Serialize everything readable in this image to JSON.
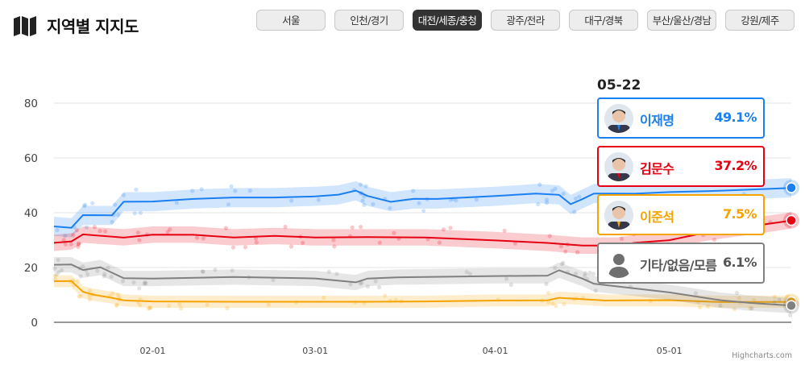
{
  "header": {
    "title": "지역별 지지도",
    "icon": "map-icon",
    "tabs": [
      {
        "label": "서울",
        "active": false
      },
      {
        "label": "인천/경기",
        "active": false
      },
      {
        "label": "대전/세종/충청",
        "active": true
      },
      {
        "label": "광주/전라",
        "active": false
      },
      {
        "label": "대구/경북",
        "active": false
      },
      {
        "label": "부산/울산/경남",
        "active": false
      },
      {
        "label": "강원/제주",
        "active": false
      }
    ]
  },
  "tooltip": {
    "date": "05-22",
    "entries": [
      {
        "name": "이재명",
        "value": "49.1%",
        "color": "#1a7ff0"
      },
      {
        "name": "김문수",
        "value": "37.2%",
        "color": "#e60012"
      },
      {
        "name": "이준석",
        "value": "7.5%",
        "color": "#f5a300"
      },
      {
        "name": "기타/없음/모름",
        "value": "6.1%",
        "color": "#808080"
      }
    ]
  },
  "credit": "Highcharts.com",
  "chart_data": {
    "type": "line",
    "x_unit": "date (2025)",
    "x_range": [
      "01-15",
      "05-22"
    ],
    "x_ticks": [
      "02-01",
      "03-01",
      "04-01",
      "05-01"
    ],
    "ylim": [
      0,
      80
    ],
    "y_ticks": [
      0,
      20,
      40,
      60,
      80
    ],
    "grid": true,
    "bands": true,
    "series": [
      {
        "name": "이재명",
        "color": "#1a7ff0",
        "x": [
          "01-15",
          "01-18",
          "01-20",
          "01-25",
          "01-27",
          "02-01",
          "02-08",
          "02-15",
          "02-22",
          "03-01",
          "03-05",
          "03-08",
          "03-10",
          "03-14",
          "03-18",
          "03-22",
          "04-01",
          "04-08",
          "04-12",
          "04-14",
          "04-16",
          "04-18",
          "04-25",
          "05-01",
          "05-08",
          "05-15",
          "05-22"
        ],
        "values": [
          35,
          34.5,
          39,
          39,
          44,
          44,
          45,
          45.5,
          45.5,
          46,
          46.5,
          48,
          46,
          44,
          45,
          45,
          46,
          47,
          46.5,
          43,
          45,
          47,
          47,
          47.5,
          48,
          48.5,
          49.1
        ]
      },
      {
        "name": "김문수",
        "color": "#e60012",
        "x": [
          "01-15",
          "01-18",
          "01-20",
          "01-27",
          "02-01",
          "02-08",
          "02-15",
          "02-22",
          "03-01",
          "03-10",
          "03-20",
          "04-01",
          "04-10",
          "04-16",
          "04-22",
          "04-25",
          "05-01",
          "05-08",
          "05-15",
          "05-22"
        ],
        "values": [
          29,
          29.5,
          32,
          31,
          32,
          32,
          31,
          31.5,
          31,
          31,
          31,
          30,
          29,
          28,
          28,
          29,
          30,
          33,
          35,
          37.2
        ]
      },
      {
        "name": "이준석",
        "color": "#f5a300",
        "x": [
          "01-15",
          "01-18",
          "01-20",
          "01-22",
          "01-25",
          "01-27",
          "02-01",
          "02-15",
          "03-01",
          "03-10",
          "03-20",
          "04-01",
          "04-10",
          "04-12",
          "04-20",
          "05-01",
          "05-10",
          "05-15",
          "05-22"
        ],
        "values": [
          15,
          15,
          11,
          10,
          9,
          8,
          7.5,
          7.5,
          7.5,
          7.5,
          7.5,
          8,
          8,
          9,
          8,
          8,
          7.5,
          7.5,
          7.5
        ]
      },
      {
        "name": "기타/없음/모름",
        "color": "#808080",
        "x": [
          "01-15",
          "01-18",
          "01-20",
          "01-23",
          "01-27",
          "02-01",
          "02-15",
          "03-01",
          "03-08",
          "03-10",
          "03-15",
          "04-01",
          "04-10",
          "04-12",
          "04-16",
          "04-18",
          "05-01",
          "05-10",
          "05-15",
          "05-22"
        ],
        "values": [
          21,
          21,
          19,
          20,
          16,
          16,
          16.5,
          16,
          14.5,
          16,
          16.5,
          17,
          17,
          19,
          16,
          14,
          11,
          8,
          7,
          6.1
        ]
      }
    ]
  }
}
